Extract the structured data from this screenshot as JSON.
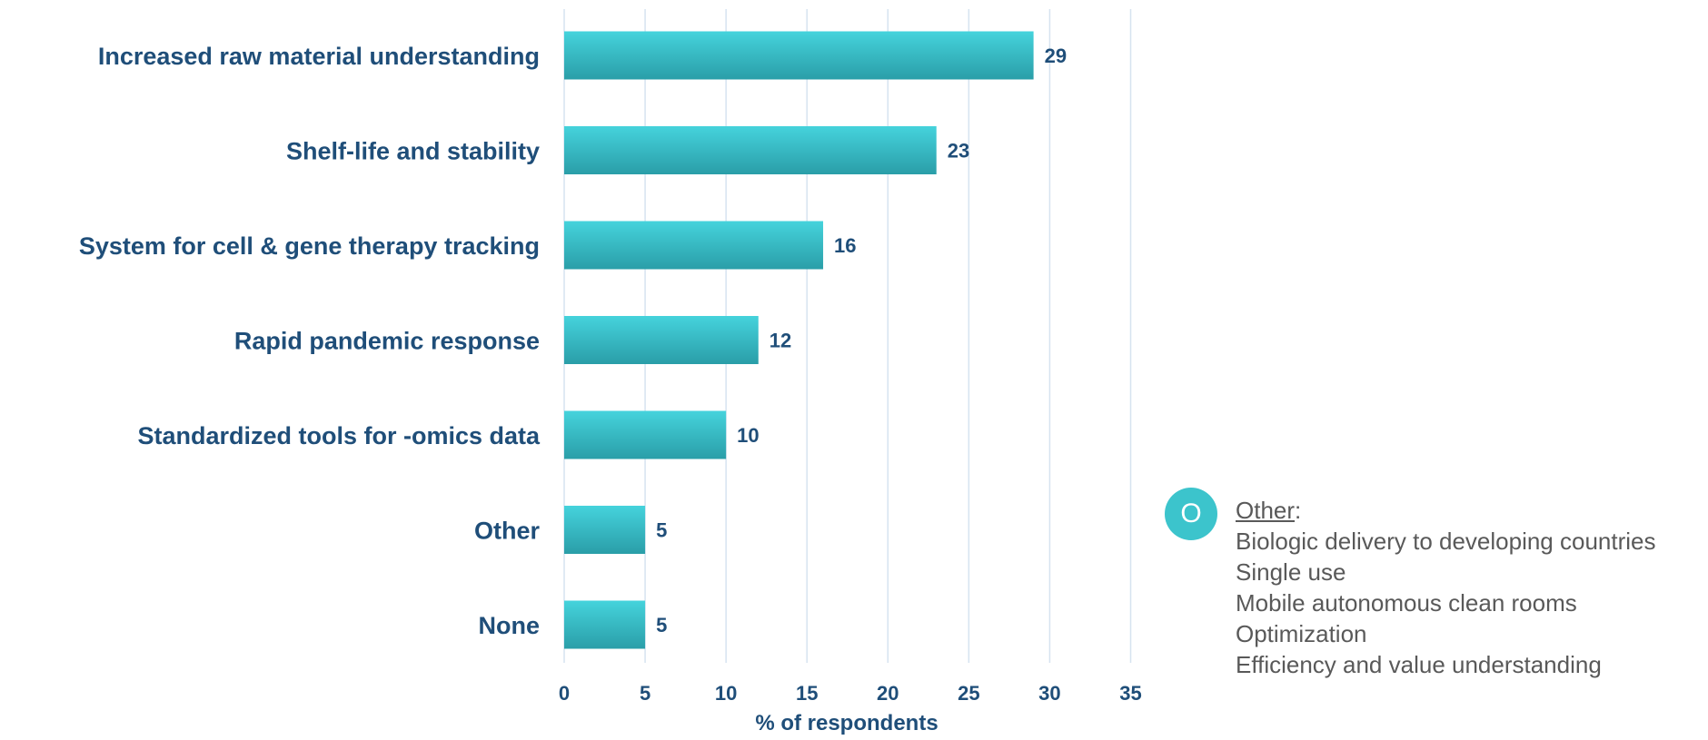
{
  "chart_data": {
    "type": "bar",
    "orientation": "horizontal",
    "categories": [
      "Increased raw material understanding",
      "Shelf-life and stability",
      "System for cell & gene therapy tracking",
      "Rapid pandemic response",
      "Standardized tools for -omics data",
      "Other",
      "None"
    ],
    "values": [
      29,
      23,
      16,
      12,
      10,
      5,
      5
    ],
    "value_labels": [
      "29",
      "23",
      "16",
      "12",
      "10",
      "5",
      "5"
    ],
    "xlabel": "% of respondents",
    "xlim": [
      0,
      35
    ],
    "xticks": [
      "0",
      "5",
      "10",
      "15",
      "20",
      "25",
      "30",
      "35"
    ],
    "grid": "vertical",
    "colors": {
      "bar_top": "#45d3dc",
      "bar_bottom": "#2a9ea8",
      "text": "#1f4e79",
      "grid": "#d6e3f0"
    }
  },
  "other_note": {
    "badge": "O",
    "heading": "Other",
    "heading_suffix": ":",
    "items": [
      "Biologic delivery to developing countries",
      "Single use",
      "Mobile autonomous clean rooms",
      "Optimization",
      "Efficiency and value understanding"
    ],
    "badge_color": "#3cc4cc",
    "text_color": "#595959"
  }
}
